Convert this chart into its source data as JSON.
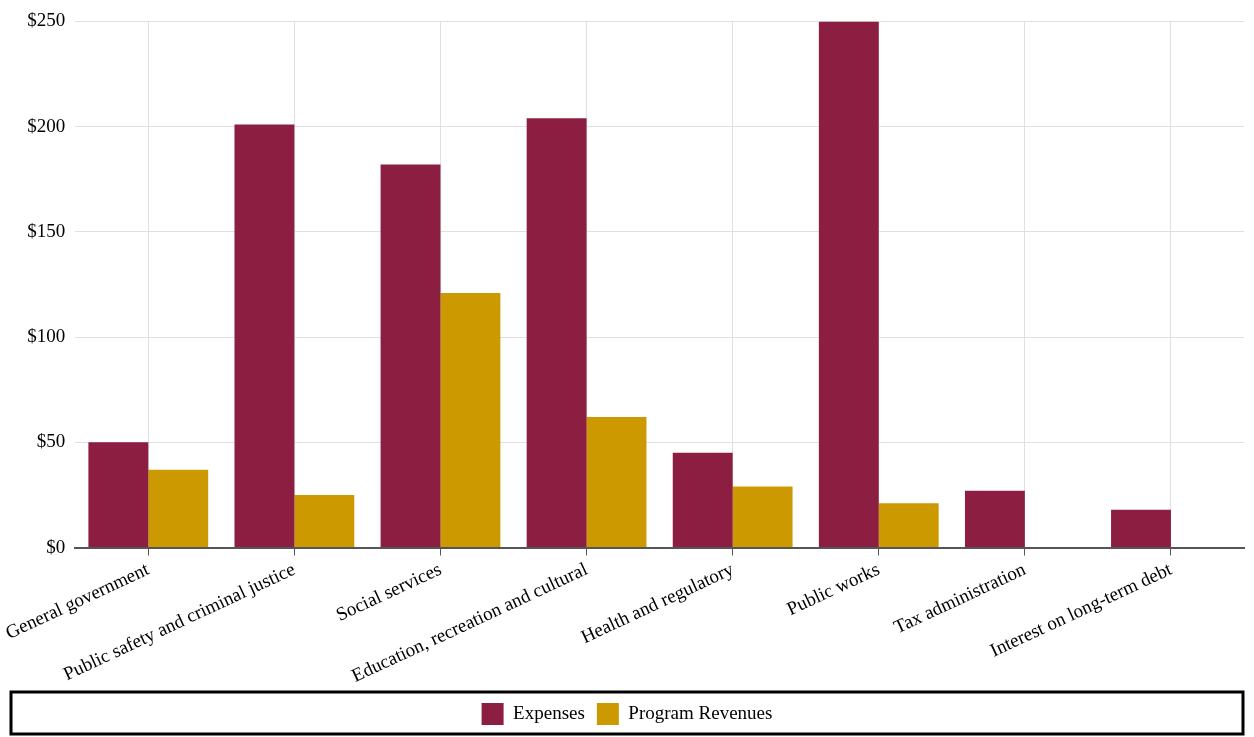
{
  "chart_data": {
    "type": "bar",
    "categories": [
      "General government",
      "Public safety and criminal justice",
      "Social services",
      "Education, recreation and cultural",
      "Health and regulatory",
      "Public works",
      "Tax administration",
      "Interest on long-term debt"
    ],
    "series": [
      {
        "name": "Expenses",
        "color": "#8b1e41",
        "values": [
          50,
          201,
          182,
          204,
          45,
          250,
          27,
          18
        ]
      },
      {
        "name": "Program Revenues",
        "color": "#cc9900",
        "values": [
          37,
          25,
          121,
          62,
          29,
          21,
          0,
          0
        ]
      }
    ],
    "ylim": [
      0,
      250
    ],
    "yticks": [
      {
        "value": 0,
        "label": "$0"
      },
      {
        "value": 50,
        "label": "$50"
      },
      {
        "value": 100,
        "label": "$100"
      },
      {
        "value": 150,
        "label": "$150"
      },
      {
        "value": 200,
        "label": "$200"
      },
      {
        "value": 250,
        "label": "$250"
      }
    ],
    "grid": true,
    "legend": "bottom"
  }
}
